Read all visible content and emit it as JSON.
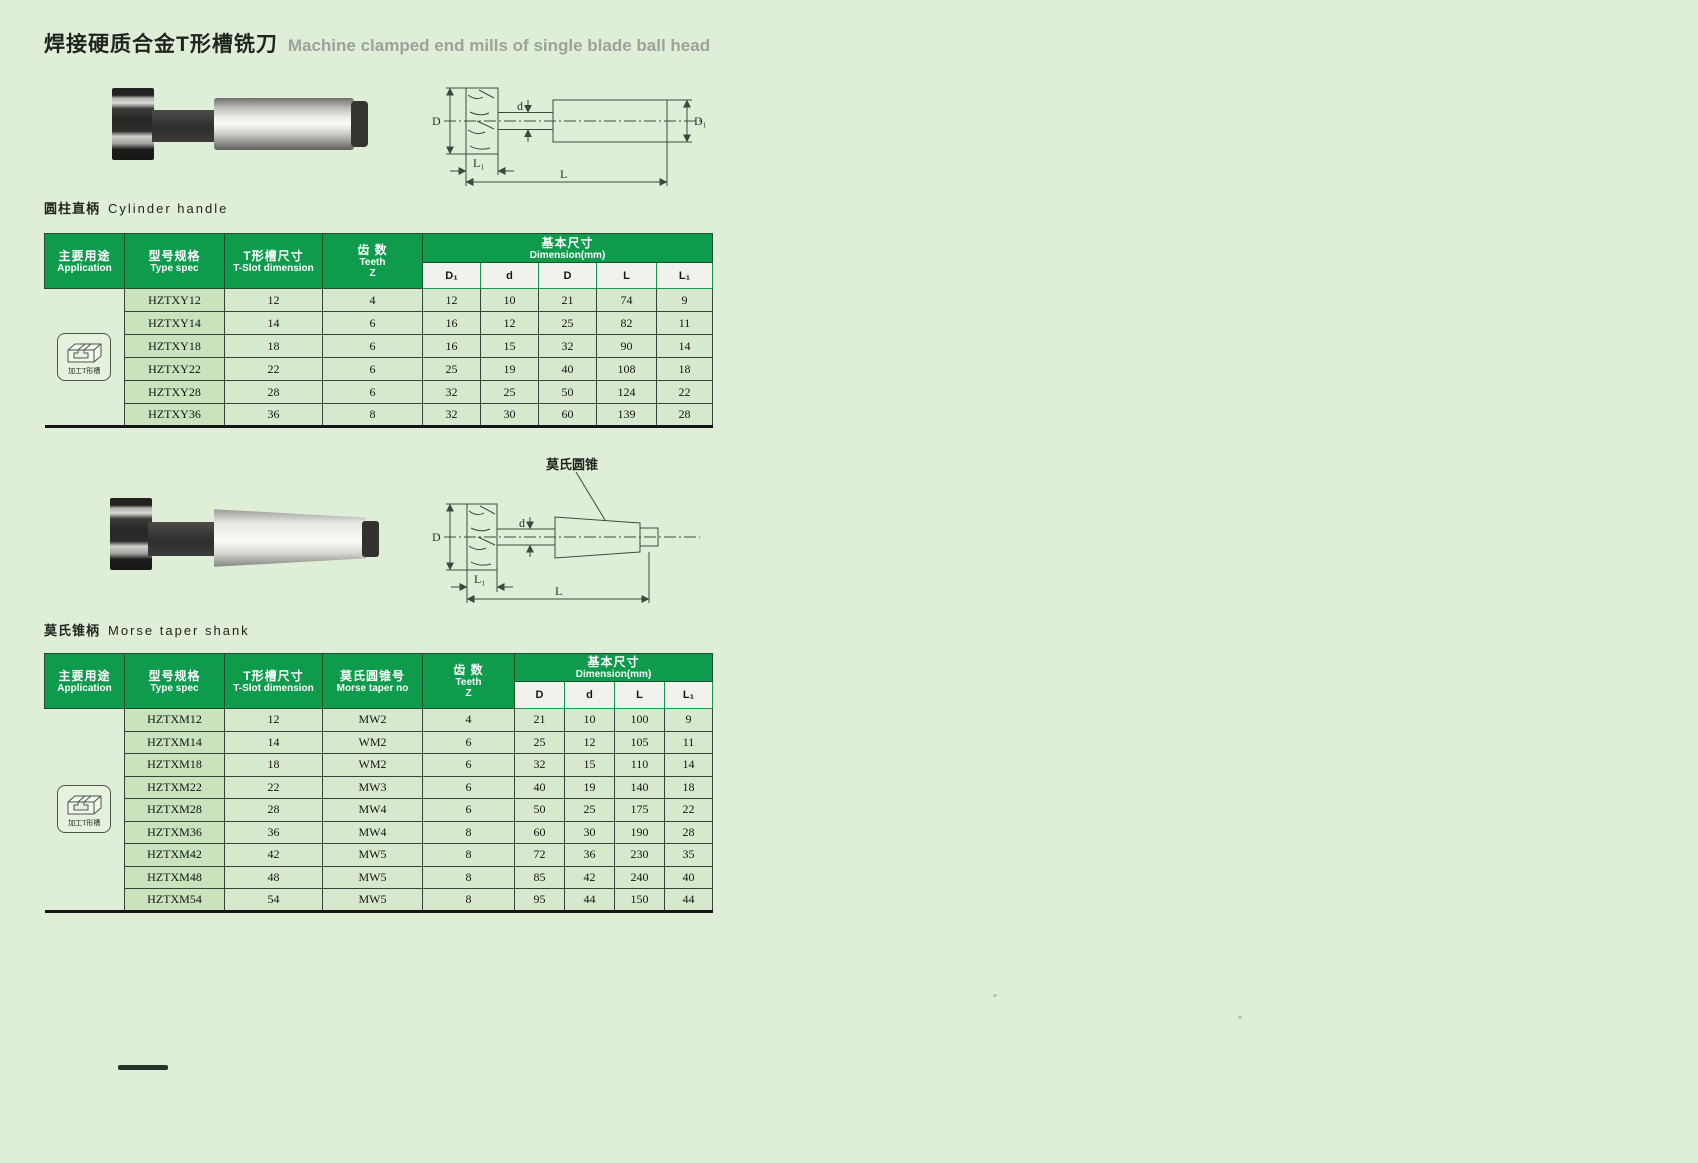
{
  "page": {
    "title_zh": "焊接硬质合金T形槽铣刀",
    "title_en": "Machine clamped end mills of single blade ball head"
  },
  "colors": {
    "page_background": "#DFEED7",
    "header_green": "#0F9B4C",
    "subheader_background": "#F2F2EC",
    "cell_green": "#D7E9CC",
    "type_column_green": "#C9E3BD"
  },
  "drawing_labels": {
    "D": "D",
    "d": "d",
    "D1": "D₁",
    "L1": "L₁",
    "L": "L"
  },
  "section1": {
    "label_zh": "圆柱直柄",
    "label_en": "Cylinder handle",
    "table": {
      "headers": {
        "application_zh": "主要用途",
        "application_en": "Application",
        "type_zh": "型号规格",
        "type_en": "Type spec",
        "tslot_zh": "T形槽尺寸",
        "tslot_en": "T-Slot dimension",
        "teeth_zh": "齿 数",
        "teeth_en": "Teeth",
        "teeth_z": "Z",
        "dim_zh": "基本尺寸",
        "dim_en": "Dimension(mm)",
        "sub": [
          "D₁",
          "d",
          "D",
          "L",
          "L₁"
        ]
      },
      "application_icon_label": "加工T形槽",
      "rows": [
        [
          "HZTXY12",
          "12",
          "4",
          "12",
          "10",
          "21",
          "74",
          "9"
        ],
        [
          "HZTXY14",
          "14",
          "6",
          "16",
          "12",
          "25",
          "82",
          "11"
        ],
        [
          "HZTXY18",
          "18",
          "6",
          "16",
          "15",
          "32",
          "90",
          "14"
        ],
        [
          "HZTXY22",
          "22",
          "6",
          "25",
          "19",
          "40",
          "108",
          "18"
        ],
        [
          "HZTXY28",
          "28",
          "6",
          "32",
          "25",
          "50",
          "124",
          "22"
        ],
        [
          "HZTXY36",
          "36",
          "8",
          "32",
          "30",
          "60",
          "139",
          "28"
        ]
      ]
    }
  },
  "section2": {
    "label_zh": "莫氏锥柄",
    "label_en": "Morse taper shank",
    "drawing_callout": "莫氏圆锥",
    "table": {
      "headers": {
        "application_zh": "主要用途",
        "application_en": "Application",
        "type_zh": "型号规格",
        "type_en": "Type spec",
        "tslot_zh": "T形槽尺寸",
        "tslot_en": "T-Slot dimension",
        "morse_zh": "莫氏圆锥号",
        "morse_en": "Morse taper no",
        "teeth_zh": "齿 数",
        "teeth_en": "Teeth",
        "teeth_z": "Z",
        "dim_zh": "基本尺寸",
        "dim_en": "Dimension(mm)",
        "sub": [
          "D",
          "d",
          "L",
          "L₁"
        ]
      },
      "application_icon_label": "加工T形槽",
      "rows": [
        [
          "HZTXM12",
          "12",
          "MW2",
          "4",
          "21",
          "10",
          "100",
          "9"
        ],
        [
          "HZTXM14",
          "14",
          "WM2",
          "6",
          "25",
          "12",
          "105",
          "11"
        ],
        [
          "HZTXM18",
          "18",
          "WM2",
          "6",
          "32",
          "15",
          "110",
          "14"
        ],
        [
          "HZTXM22",
          "22",
          "MW3",
          "6",
          "40",
          "19",
          "140",
          "18"
        ],
        [
          "HZTXM28",
          "28",
          "MW4",
          "6",
          "50",
          "25",
          "175",
          "22"
        ],
        [
          "HZTXM36",
          "36",
          "MW4",
          "8",
          "60",
          "30",
          "190",
          "28"
        ],
        [
          "HZTXM42",
          "42",
          "MW5",
          "8",
          "72",
          "36",
          "230",
          "35"
        ],
        [
          "HZTXM48",
          "48",
          "MW5",
          "8",
          "85",
          "42",
          "240",
          "40"
        ],
        [
          "HZTXM54",
          "54",
          "MW5",
          "8",
          "95",
          "44",
          "150",
          "44"
        ]
      ]
    }
  }
}
